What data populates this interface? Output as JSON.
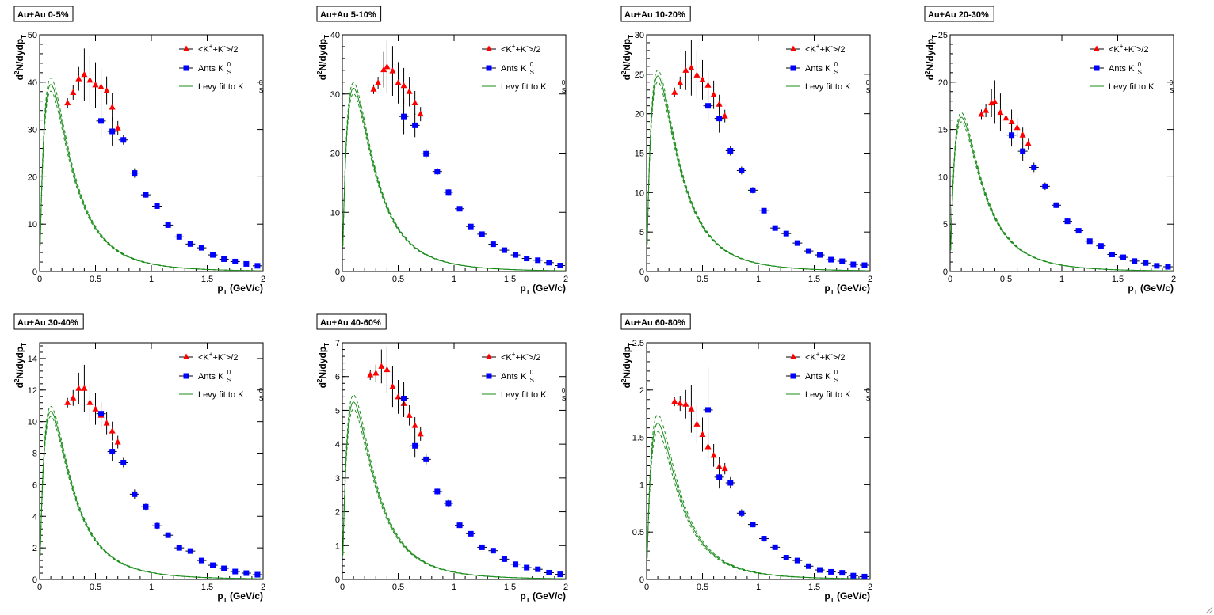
{
  "common": {
    "x_title_main": "p",
    "x_title_sub": "T",
    "x_title_unit": " (GeV/c)",
    "y_title_pre": "d",
    "y_title_sup": "2",
    "y_title_main": "N/dydp",
    "y_title_sub": "T",
    "xlim": [
      0,
      2
    ],
    "xticks": [
      "0",
      "0.5",
      "1",
      "1.5",
      "2"
    ],
    "colors": {
      "kaon_charged": "#ff0000",
      "kaon_short": "#0000ff",
      "fit": "#1a8c1a",
      "errbar": "#000000"
    },
    "legend": {
      "charged": {
        "pre": "<K",
        "sup1": "+",
        "mid": "+K",
        "sup2": "-",
        "post": ">/2"
      },
      "short": {
        "pre": "Ants K",
        "sub": "S",
        "sup": "0"
      },
      "fit": {
        "pre": "Levy fit to K",
        "sub": "S",
        "sup": "0"
      }
    }
  },
  "chart_data": [
    {
      "type": "scatter",
      "title": "Au+Au 0-5%",
      "ylim": [
        0,
        50
      ],
      "yticks": [
        0,
        10,
        20,
        30,
        40,
        50
      ],
      "fit": {
        "peak": 39.5,
        "band": 0.035
      },
      "series": [
        {
          "name": "<K+ + K->/2",
          "marker": "triangle",
          "x": [
            0.25,
            0.3,
            0.35,
            0.4,
            0.45,
            0.5,
            0.55,
            0.6,
            0.65,
            0.7
          ],
          "y": [
            35.6,
            37.8,
            40.7,
            41.6,
            40.4,
            39.4,
            39.0,
            38.2,
            34.7,
            30.3
          ],
          "err": [
            1.0,
            1.5,
            2.5,
            5.5,
            5.2,
            4.8,
            3.8,
            3.0,
            3.0,
            1.5
          ]
        },
        {
          "name": "Ants K0S",
          "marker": "square",
          "x": [
            0.55,
            0.65,
            0.75,
            0.85,
            0.95,
            1.05,
            1.15,
            1.25,
            1.35,
            1.45,
            1.55,
            1.65,
            1.75,
            1.85,
            1.95
          ],
          "y": [
            31.8,
            29.6,
            27.8,
            20.8,
            16.2,
            13.8,
            9.8,
            7.3,
            5.8,
            5.0,
            3.5,
            2.6,
            2.1,
            1.6,
            1.2
          ],
          "err": [
            3.5,
            3.0,
            1.0,
            1.0,
            0.6,
            0.5,
            0.4,
            0.3,
            0.2,
            0.2,
            0.2,
            0.2,
            0.1,
            0.1,
            0.1
          ]
        }
      ]
    },
    {
      "type": "scatter",
      "title": "Au+Au 5-10%",
      "ylim": [
        0,
        40
      ],
      "yticks": [
        0,
        10,
        20,
        30,
        40
      ],
      "fit": {
        "peak": 31.0,
        "band": 0.03
      },
      "series": [
        {
          "name": "<K+ + K->/2",
          "marker": "triangle",
          "x": [
            0.28,
            0.32,
            0.37,
            0.4,
            0.45,
            0.5,
            0.55,
            0.6,
            0.65,
            0.7
          ],
          "y": [
            30.8,
            31.9,
            34.1,
            34.6,
            33.9,
            31.9,
            31.4,
            30.4,
            28.5,
            26.6
          ],
          "err": [
            0.8,
            1.0,
            3.0,
            4.5,
            4.2,
            3.5,
            3.0,
            2.5,
            2.0,
            1.2
          ]
        },
        {
          "name": "Ants K0S",
          "marker": "square",
          "x": [
            0.55,
            0.65,
            0.75,
            0.85,
            0.95,
            1.05,
            1.15,
            1.25,
            1.35,
            1.45,
            1.55,
            1.65,
            1.75,
            1.85,
            1.95
          ],
          "y": [
            26.2,
            24.7,
            19.9,
            16.9,
            13.4,
            10.6,
            7.6,
            6.3,
            4.6,
            3.6,
            2.8,
            2.2,
            1.9,
            1.5,
            1.0
          ],
          "err": [
            3.0,
            2.0,
            0.8,
            0.6,
            0.5,
            0.4,
            0.3,
            0.3,
            0.2,
            0.2,
            0.2,
            0.1,
            0.1,
            0.1,
            0.1
          ]
        }
      ]
    },
    {
      "type": "scatter",
      "title": "Au+Au 10-20%",
      "ylim": [
        0,
        30
      ],
      "yticks": [
        0,
        5,
        10,
        15,
        20,
        25,
        30
      ],
      "fit": {
        "peak": 24.8,
        "band": 0.03
      },
      "series": [
        {
          "name": "<K+ + K->/2",
          "marker": "triangle",
          "x": [
            0.25,
            0.3,
            0.35,
            0.4,
            0.45,
            0.5,
            0.55,
            0.6,
            0.65,
            0.7
          ],
          "y": [
            22.7,
            23.9,
            25.5,
            25.8,
            24.9,
            24.3,
            23.6,
            22.4,
            21.2,
            19.7
          ],
          "err": [
            0.6,
            0.8,
            2.5,
            3.5,
            3.0,
            2.5,
            2.0,
            1.8,
            1.2,
            0.8
          ]
        },
        {
          "name": "Ants K0S",
          "marker": "square",
          "x": [
            0.55,
            0.65,
            0.75,
            0.85,
            0.95,
            1.05,
            1.15,
            1.25,
            1.35,
            1.45,
            1.55,
            1.65,
            1.75,
            1.85,
            1.95
          ],
          "y": [
            21.0,
            19.4,
            15.3,
            12.8,
            10.3,
            7.7,
            5.5,
            4.8,
            3.6,
            2.6,
            2.1,
            1.5,
            1.3,
            0.9,
            0.8
          ],
          "err": [
            2.0,
            1.8,
            0.6,
            0.5,
            0.4,
            0.3,
            0.3,
            0.2,
            0.2,
            0.2,
            0.1,
            0.1,
            0.1,
            0.1,
            0.1
          ]
        }
      ]
    },
    {
      "type": "scatter",
      "title": "Au+Au 20-30%",
      "ylim": [
        0,
        25
      ],
      "yticks": [
        0,
        5,
        10,
        15,
        20,
        25
      ],
      "fit": {
        "peak": 16.3,
        "band": 0.03
      },
      "series": [
        {
          "name": "<K+ + K->/2",
          "marker": "triangle",
          "x": [
            0.28,
            0.32,
            0.37,
            0.4,
            0.45,
            0.5,
            0.55,
            0.6,
            0.65,
            0.7
          ],
          "y": [
            16.6,
            17.0,
            17.8,
            17.9,
            16.8,
            16.2,
            15.8,
            15.2,
            14.4,
            13.5
          ],
          "err": [
            0.5,
            0.7,
            1.5,
            2.3,
            2.0,
            1.6,
            1.3,
            1.0,
            0.8,
            0.6
          ]
        },
        {
          "name": "Ants K0S",
          "marker": "square",
          "x": [
            0.55,
            0.65,
            0.75,
            0.85,
            0.95,
            1.05,
            1.15,
            1.25,
            1.35,
            1.45,
            1.55,
            1.65,
            1.75,
            1.85,
            1.95
          ],
          "y": [
            14.4,
            12.7,
            11.0,
            9.0,
            7.0,
            5.3,
            4.3,
            3.2,
            2.7,
            1.8,
            1.5,
            1.1,
            0.9,
            0.6,
            0.5
          ],
          "err": [
            1.2,
            1.0,
            0.5,
            0.4,
            0.3,
            0.3,
            0.2,
            0.2,
            0.2,
            0.1,
            0.1,
            0.1,
            0.1,
            0.1,
            0.1
          ]
        }
      ]
    },
    {
      "type": "scatter",
      "title": "Au+Au 30-40%",
      "ylim": [
        0,
        15
      ],
      "yticks": [
        0,
        2,
        4,
        6,
        8,
        10,
        12,
        14
      ],
      "fit": {
        "peak": 10.65,
        "band": 0.03
      },
      "series": [
        {
          "name": "<K+ + K->/2",
          "marker": "triangle",
          "x": [
            0.25,
            0.3,
            0.35,
            0.4,
            0.45,
            0.5,
            0.55,
            0.6,
            0.65,
            0.7
          ],
          "y": [
            11.2,
            11.5,
            12.1,
            12.1,
            11.2,
            10.8,
            10.4,
            9.9,
            9.4,
            8.7
          ],
          "err": [
            0.3,
            0.5,
            1.0,
            1.5,
            1.2,
            1.0,
            0.8,
            0.7,
            0.6,
            0.4
          ]
        },
        {
          "name": "Ants K0S",
          "marker": "square",
          "x": [
            0.55,
            0.65,
            0.75,
            0.85,
            0.95,
            1.05,
            1.15,
            1.25,
            1.35,
            1.45,
            1.55,
            1.65,
            1.75,
            1.85,
            1.95
          ],
          "y": [
            10.5,
            8.1,
            7.4,
            5.4,
            4.6,
            3.4,
            2.8,
            2.0,
            1.8,
            1.2,
            0.9,
            0.7,
            0.5,
            0.4,
            0.3
          ],
          "err": [
            0.8,
            0.6,
            0.3,
            0.3,
            0.2,
            0.2,
            0.1,
            0.1,
            0.1,
            0.1,
            0.1,
            0.1,
            0.05,
            0.05,
            0.05
          ]
        }
      ]
    },
    {
      "type": "scatter",
      "title": "Au+Au 40-60%",
      "ylim": [
        0,
        7
      ],
      "yticks": [
        0,
        1,
        2,
        3,
        4,
        5,
        6,
        7
      ],
      "fit": {
        "peak": 5.25,
        "band": 0.04
      },
      "series": [
        {
          "name": "<K+ + K->/2",
          "marker": "triangle",
          "x": [
            0.25,
            0.3,
            0.35,
            0.4,
            0.45,
            0.5,
            0.55,
            0.6,
            0.65,
            0.7
          ],
          "y": [
            6.05,
            6.1,
            6.3,
            6.2,
            5.7,
            5.4,
            5.2,
            4.85,
            4.55,
            4.3
          ],
          "err": [
            0.15,
            0.25,
            0.5,
            0.7,
            0.6,
            0.5,
            0.4,
            0.3,
            0.25,
            0.2
          ]
        },
        {
          "name": "Ants K0S",
          "marker": "square",
          "x": [
            0.55,
            0.65,
            0.75,
            0.85,
            0.95,
            1.05,
            1.15,
            1.25,
            1.35,
            1.45,
            1.55,
            1.65,
            1.75,
            1.85,
            1.95
          ],
          "y": [
            5.35,
            3.95,
            3.55,
            2.6,
            2.25,
            1.6,
            1.35,
            0.95,
            0.85,
            0.6,
            0.45,
            0.35,
            0.3,
            0.2,
            0.15
          ],
          "err": [
            0.5,
            0.35,
            0.15,
            0.1,
            0.1,
            0.08,
            0.06,
            0.05,
            0.05,
            0.04,
            0.03,
            0.03,
            0.02,
            0.02,
            0.02
          ]
        }
      ]
    },
    {
      "type": "scatter",
      "title": "Au+Au 60-80%",
      "ylim": [
        0,
        2.5
      ],
      "yticks": [
        0,
        0.5,
        1,
        1.5,
        2,
        2.5
      ],
      "fit": {
        "peak": 1.65,
        "band": 0.055
      },
      "series": [
        {
          "name": "<K+ + K->/2",
          "marker": "triangle",
          "x": [
            0.25,
            0.3,
            0.35,
            0.4,
            0.45,
            0.5,
            0.55,
            0.6,
            0.65,
            0.7
          ],
          "y": [
            1.88,
            1.86,
            1.85,
            1.8,
            1.64,
            1.53,
            1.4,
            1.31,
            1.19,
            1.17
          ],
          "err": [
            0.05,
            0.08,
            0.15,
            0.25,
            0.2,
            0.18,
            0.15,
            0.12,
            0.1,
            0.06
          ]
        },
        {
          "name": "Ants K0S",
          "marker": "square",
          "x": [
            0.55,
            0.65,
            0.75,
            0.85,
            0.95,
            1.05,
            1.15,
            1.25,
            1.35,
            1.45,
            1.55,
            1.65,
            1.75,
            1.85,
            1.95
          ],
          "y": [
            1.79,
            1.08,
            1.02,
            0.7,
            0.58,
            0.43,
            0.34,
            0.23,
            0.2,
            0.14,
            0.1,
            0.08,
            0.07,
            0.04,
            0.03
          ],
          "err": [
            0.45,
            0.12,
            0.06,
            0.04,
            0.03,
            0.03,
            0.02,
            0.02,
            0.02,
            0.01,
            0.01,
            0.01,
            0.01,
            0.01,
            0.01
          ]
        }
      ]
    }
  ]
}
